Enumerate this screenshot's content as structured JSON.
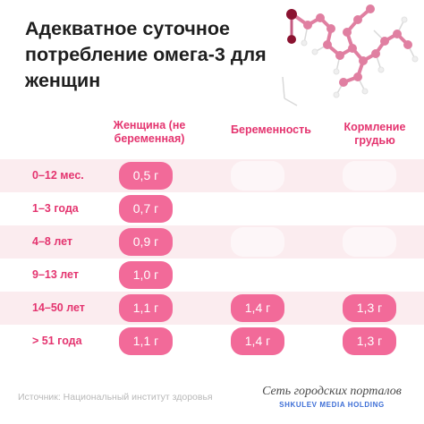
{
  "title": "Адекватное суточное потребление омега-3 для женщин",
  "columns": [
    "Женщина (не беременная)",
    "Беременность",
    "Кормление грудью"
  ],
  "colors": {
    "accent": "#e4346f",
    "pill": "#f26a99",
    "row_shade": "#fbecef",
    "molecule": "#e07fa1",
    "brand_blue": "#3d6ed6"
  },
  "rows": [
    {
      "label": "0–12 мес.",
      "women": "0,5 г",
      "pregnant": "",
      "breastfeeding": ""
    },
    {
      "label": "1–3 года",
      "women": "0,7 г",
      "pregnant": "",
      "breastfeeding": ""
    },
    {
      "label": "4–8 лет",
      "women": "0,9 г",
      "pregnant": "",
      "breastfeeding": ""
    },
    {
      "label": "9–13 лет",
      "women": "1,0 г",
      "pregnant": "",
      "breastfeeding": ""
    },
    {
      "label": "14–50 лет",
      "women": "1,1 г",
      "pregnant": "1,4 г",
      "breastfeeding": "1,3 г"
    },
    {
      "label": "> 51 года",
      "women": "1,1 г",
      "pregnant": "1,4 г",
      "breastfeeding": "1,3 г"
    }
  ],
  "chart_data": {
    "type": "table",
    "title": "Адекватное суточное потребление омега-3 для женщин",
    "unit": "г",
    "categories": [
      "0–12 мес.",
      "1–3 года",
      "4–8 лет",
      "9–13 лет",
      "14–50 лет",
      "> 51 года"
    ],
    "series": [
      {
        "name": "Женщина (не беременная)",
        "values": [
          0.5,
          0.7,
          0.9,
          1.0,
          1.1,
          1.1
        ]
      },
      {
        "name": "Беременность",
        "values": [
          null,
          null,
          null,
          null,
          1.4,
          1.4
        ]
      },
      {
        "name": "Кормление грудью",
        "values": [
          null,
          null,
          null,
          null,
          1.3,
          1.3
        ]
      }
    ]
  },
  "footer": {
    "source": "Источник: Национальный институт здоровья",
    "brand_top": "Сеть городских порталов",
    "brand_bottom": "SHKULEV MEDIA HOLDING"
  },
  "decoration": {
    "icon": "omega3-molecule-icon"
  }
}
